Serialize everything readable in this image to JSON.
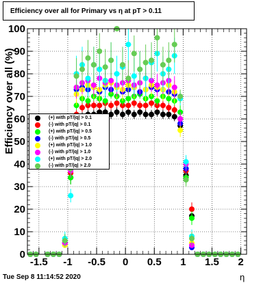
{
  "page": {
    "title": "Efficiency over all for Primary vs   η at pT > 0.11",
    "timestamp": "Tue Sep  8 11:14:52 2020"
  },
  "chart_data": {
    "type": "scatter",
    "title": "Efficiency over all for Primary vs   η at pT > 0.11",
    "xlabel": "η",
    "ylabel": "Efficiency over all (%)",
    "xlim": [
      -1.7,
      2.1
    ],
    "ylim": [
      0,
      100
    ],
    "x_ticks": [
      "-1.5",
      "-1",
      "-0.5",
      "0",
      "0.5",
      "1",
      "1.5",
      "2"
    ],
    "y_ticks": [
      "0",
      "10",
      "20",
      "30",
      "40",
      "50",
      "60",
      "70",
      "80",
      "90",
      "100"
    ],
    "grid": true,
    "legend_position": "middle-left",
    "x": [
      -1.65,
      -1.55,
      -1.35,
      -1.25,
      -1.15,
      -1.05,
      -0.95,
      -0.85,
      -0.75,
      -0.65,
      -0.55,
      -0.45,
      -0.35,
      -0.25,
      -0.15,
      -0.05,
      0.05,
      0.15,
      0.25,
      0.35,
      0.45,
      0.55,
      0.65,
      0.75,
      0.85,
      0.95,
      1.05,
      1.15,
      1.25,
      1.35,
      1.45,
      1.55,
      1.65,
      1.75,
      1.85,
      1.95
    ],
    "series": [
      {
        "name": "(+) with pT/|q| > 0.1",
        "color": "#000000",
        "values": [
          0,
          0,
          0,
          0,
          0,
          5,
          34,
          58,
          61,
          62,
          62,
          63,
          63,
          62,
          63,
          62,
          63,
          62,
          63,
          62,
          62,
          63,
          62,
          62,
          61,
          57,
          35,
          17,
          0,
          0,
          0,
          0,
          0,
          0,
          0,
          0
        ]
      },
      {
        "name": "(-) with pT/|q| > 0.1",
        "color": "#ff0000",
        "values": [
          0,
          0,
          0,
          0,
          0,
          5,
          36,
          62,
          65,
          66,
          66,
          66,
          67,
          66,
          67,
          66,
          66,
          67,
          66,
          66,
          67,
          66,
          66,
          65,
          64,
          60,
          37,
          20,
          0,
          0,
          0,
          0,
          0,
          0,
          0,
          0
        ]
      },
      {
        "name": "(+) with pT/|q| > 0.5",
        "color": "#00ff00",
        "values": [
          0,
          0,
          0,
          0,
          0,
          6,
          34,
          66,
          69,
          68,
          70,
          69,
          68,
          71,
          70,
          68,
          69,
          70,
          71,
          69,
          70,
          68,
          70,
          69,
          68,
          63,
          34,
          16,
          0,
          0,
          0,
          0,
          0,
          0,
          0,
          0
        ]
      },
      {
        "name": "(-) with pT/|q| > 0.5",
        "color": "#0000ff",
        "values": [
          0,
          0,
          0,
          0,
          0,
          5,
          38,
          73,
          74,
          73,
          74,
          72,
          74,
          73,
          74,
          72,
          73,
          74,
          72,
          73,
          74,
          73,
          73,
          72,
          71,
          58,
          38,
          3,
          0,
          0,
          0,
          0,
          0,
          0,
          0,
          0
        ]
      },
      {
        "name": "(+) with pT/|q| > 1.0",
        "color": "#ffff00",
        "values": [
          0,
          0,
          0,
          0,
          0,
          4,
          40,
          71,
          73,
          75,
          74,
          73,
          75,
          76,
          74,
          73,
          75,
          74,
          76,
          73,
          75,
          74,
          73,
          75,
          72,
          55,
          40,
          5,
          0,
          0,
          0,
          0,
          0,
          0,
          0,
          0
        ]
      },
      {
        "name": "(-) with pT/|q| > 1.0",
        "color": "#ff00ff",
        "values": [
          0,
          0,
          0,
          0,
          0,
          5,
          37,
          74,
          76,
          77,
          75,
          78,
          76,
          77,
          75,
          76,
          77,
          75,
          76,
          78,
          77,
          75,
          76,
          77,
          74,
          60,
          40,
          4,
          0,
          0,
          0,
          0,
          0,
          0,
          0,
          0
        ]
      },
      {
        "name": "(+) with pT/|q| > 2.0",
        "color": "#00ffff",
        "values": [
          0,
          0,
          0,
          0,
          0,
          7,
          26,
          80,
          84,
          78,
          84,
          82,
          77,
          86,
          80,
          83,
          93,
          79,
          82,
          78,
          85,
          89,
          80,
          82,
          88,
          69,
          41,
          8,
          0,
          0,
          0,
          0,
          0,
          0,
          0,
          0
        ]
      },
      {
        "name": "(-) with pT/|q| > 2.0",
        "color": "#66cc55",
        "values": [
          0,
          0,
          0,
          0,
          0,
          6,
          38,
          79,
          82,
          87,
          84,
          90,
          83,
          86,
          100,
          84,
          78,
          89,
          82,
          85,
          86,
          96,
          84,
          86,
          93,
          70,
          33,
          7,
          0,
          0,
          0,
          0,
          0,
          0,
          0,
          0
        ]
      }
    ]
  }
}
